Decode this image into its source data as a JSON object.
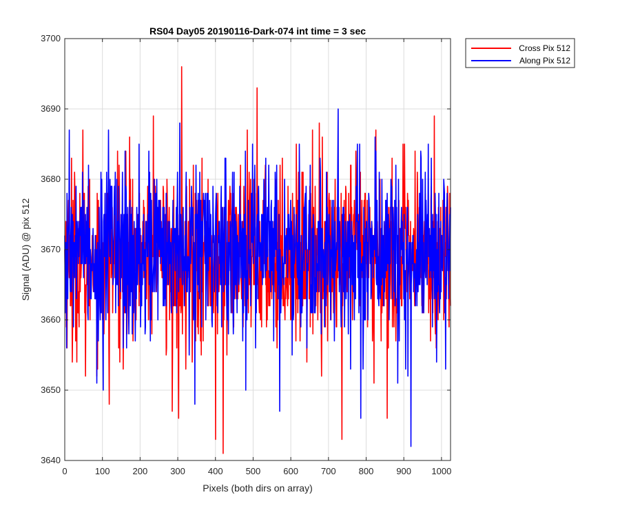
{
  "chart_data": {
    "type": "line",
    "title": "RS04 Day05 20190116-Dark-074 int time = 3 sec",
    "xlabel": "Pixels (both dirs on array)",
    "ylabel": "Signal (ADU) @ pix 512",
    "xlim": [
      0,
      1024
    ],
    "ylim": [
      3640,
      3700
    ],
    "xticks": [
      0,
      100,
      200,
      300,
      400,
      500,
      600,
      700,
      800,
      900,
      1000
    ],
    "yticks": [
      3640,
      3650,
      3660,
      3670,
      3680,
      3690,
      3700
    ],
    "grid": true,
    "legend_position": "outside-top-right",
    "series": [
      {
        "name": "Cross Pix 512",
        "color": "#ff0000",
        "mean": 3669,
        "noise_sd": 6,
        "n_points": 1024,
        "peaks": [
          {
            "x": 18,
            "y": 3683
          },
          {
            "x": 20,
            "y": 3654
          },
          {
            "x": 48,
            "y": 3687
          },
          {
            "x": 55,
            "y": 3652
          },
          {
            "x": 118,
            "y": 3648
          },
          {
            "x": 140,
            "y": 3684
          },
          {
            "x": 155,
            "y": 3653
          },
          {
            "x": 235,
            "y": 3689
          },
          {
            "x": 285,
            "y": 3647
          },
          {
            "x": 302,
            "y": 3646
          },
          {
            "x": 310,
            "y": 3696
          },
          {
            "x": 400,
            "y": 3643
          },
          {
            "x": 420,
            "y": 3641
          },
          {
            "x": 510,
            "y": 3693
          },
          {
            "x": 620,
            "y": 3681
          },
          {
            "x": 675,
            "y": 3688
          },
          {
            "x": 735,
            "y": 3643
          },
          {
            "x": 820,
            "y": 3651
          },
          {
            "x": 825,
            "y": 3687
          },
          {
            "x": 855,
            "y": 3646
          },
          {
            "x": 980,
            "y": 3689
          }
        ]
      },
      {
        "name": "Along Pix 512",
        "color": "#0000ff",
        "mean": 3670,
        "noise_sd": 6,
        "n_points": 1024,
        "peaks": [
          {
            "x": 5,
            "y": 3656
          },
          {
            "x": 12,
            "y": 3687
          },
          {
            "x": 85,
            "y": 3651
          },
          {
            "x": 102,
            "y": 3650
          },
          {
            "x": 160,
            "y": 3684
          },
          {
            "x": 305,
            "y": 3688
          },
          {
            "x": 345,
            "y": 3648
          },
          {
            "x": 480,
            "y": 3650
          },
          {
            "x": 570,
            "y": 3647
          },
          {
            "x": 725,
            "y": 3690
          },
          {
            "x": 785,
            "y": 3646
          },
          {
            "x": 918,
            "y": 3642
          },
          {
            "x": 1010,
            "y": 3653
          }
        ]
      }
    ]
  }
}
